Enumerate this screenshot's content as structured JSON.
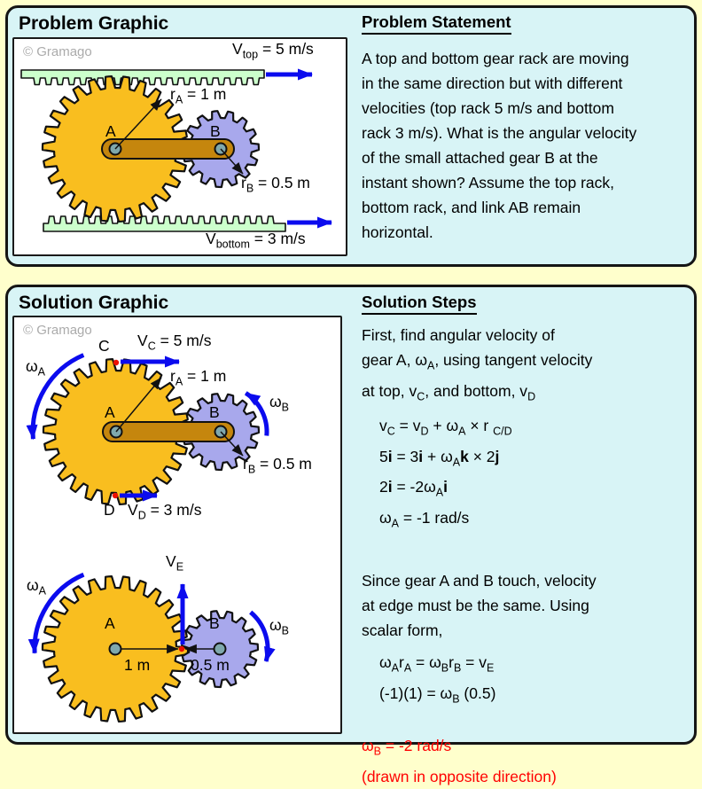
{
  "colors": {
    "page_bg": "#FFFFCC",
    "panel_bg": "#D8F4F6",
    "gear_a": "#F9BE1F",
    "gear_b": "#A8A8EC",
    "link": "#C5860D",
    "rack": "#CCFFCC",
    "arrow_blue": "#0B0BEE",
    "result_red": "#FF0000",
    "pin": "#7FA8AC",
    "copy_gray": "#ABABAB",
    "dot_red": "#EE1100"
  },
  "problem_panel": {
    "title": "Problem Graphic",
    "graphic": {
      "copyright": "© Gramago",
      "labels": {
        "v_top": "V~top~ = 5 m/s",
        "r_a": "r~A~ = 1 m",
        "a": "A",
        "b": "B",
        "r_b": "r~B~ = 0.5 m",
        "v_bottom": "V~bottom~ = 3 m/s"
      }
    },
    "statement": {
      "heading": "Problem Statement",
      "lines": [
        "A top and bottom gear rack are moving",
        "in the same direction but with different",
        "velocities (top rack 5 m/s and bottom",
        "rack 3 m/s). What is the angular velocity",
        "of the small attached gear B at the",
        "instant shown? Assume the top rack,",
        "bottom rack, and link AB remain",
        "horizontal."
      ]
    }
  },
  "solution_panel": {
    "title": "Solution Graphic",
    "graphic": {
      "copyright": "© Gramago",
      "labels": {
        "c": "C",
        "v_c": "V~C~ = 5 m/s",
        "omega_a_top": "ω~A~",
        "r_a": "r~A~ = 1 m",
        "a_top": "A",
        "b_top": "B",
        "omega_b_top": "ω~B~",
        "r_b": "r~B~ = 0.5 m",
        "d": "D",
        "v_d": "V~D~ = 3 m/s",
        "v_e": "V~E~",
        "omega_a_bottom": "ω~A~",
        "a_bottom": "A",
        "b_bottom": "B",
        "omega_b_bottom": "ω~B~",
        "dist_1m": "1 m",
        "dist_05m": "0.5 m"
      }
    },
    "steps": {
      "heading": "Solution Steps",
      "para1": [
        "First, find angular velocity of",
        "gear A, ω~A~, using tangent velocity",
        "at top, v~C~, and bottom, v~D~"
      ],
      "eqs1": [
        "v~C~ = v~D~ + ω~A~ × r ~C/D~",
        "5*i* = 3*i* + ω~A~*k* × 2*j*",
        "2*i* = -2ω~A~*i*",
        "ω~A~ = -1 rad/s"
      ],
      "para2": [
        "Since gear A and B touch, velocity",
        "at edge must be the same. Using",
        "scalar form,"
      ],
      "eqs2": [
        "ω~A~r~A~ = ω~B~r~B~ = v~E~",
        "(-1)(1) = ω~B~ (0.5)"
      ],
      "result": [
        "ω~B~ = -2 rad/s",
        "(drawn in opposite direction)"
      ]
    }
  }
}
